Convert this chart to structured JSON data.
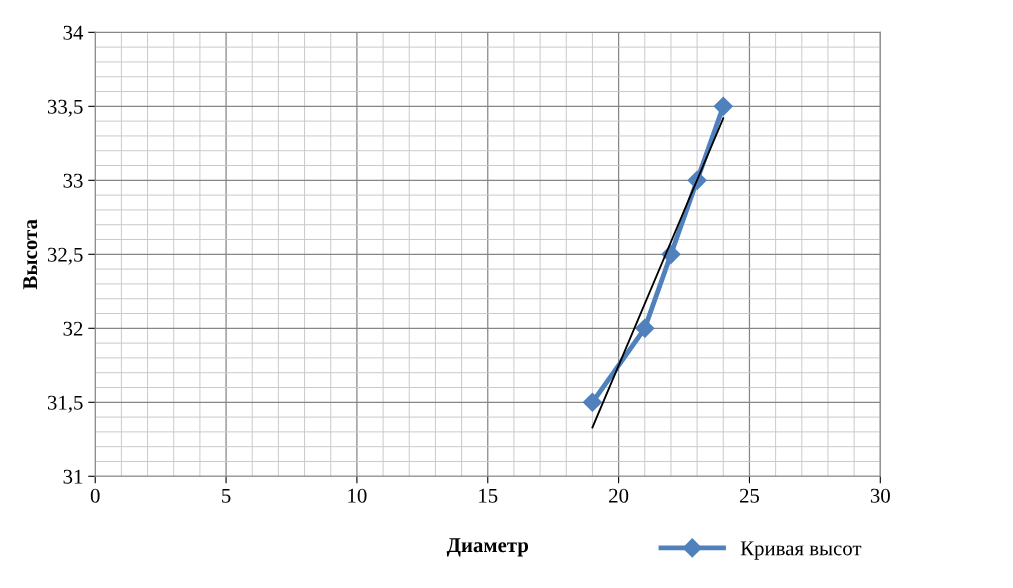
{
  "chart_data": {
    "type": "line",
    "xlabel": "Диаметр",
    "ylabel": "Высота",
    "series": [
      {
        "name": "Кривая высот",
        "color": "#4f81bd",
        "x": [
          19,
          21,
          22,
          23,
          24
        ],
        "values": [
          31.5,
          32,
          32.5,
          33,
          33.5
        ],
        "marker": "diamond"
      },
      {
        "type": "line",
        "color": "#000000",
        "x": [
          19,
          24
        ],
        "values": [
          31.33,
          33.42
        ],
        "marker": "none"
      }
    ],
    "xlim": [
      0,
      30
    ],
    "xticks": [
      0,
      5,
      10,
      15,
      20,
      25,
      30
    ],
    "ylim": [
      31,
      34
    ],
    "yticks": [
      {
        "value": 31,
        "label": "31"
      },
      {
        "value": 31.5,
        "label": "31,5"
      },
      {
        "value": 32,
        "label": "32"
      },
      {
        "value": 32.5,
        "label": "32,5"
      },
      {
        "value": 33,
        "label": "33"
      },
      {
        "value": 33.5,
        "label": "33,5"
      },
      {
        "value": 34,
        "label": "34"
      }
    ],
    "grid": true,
    "legend": "bottom right"
  }
}
